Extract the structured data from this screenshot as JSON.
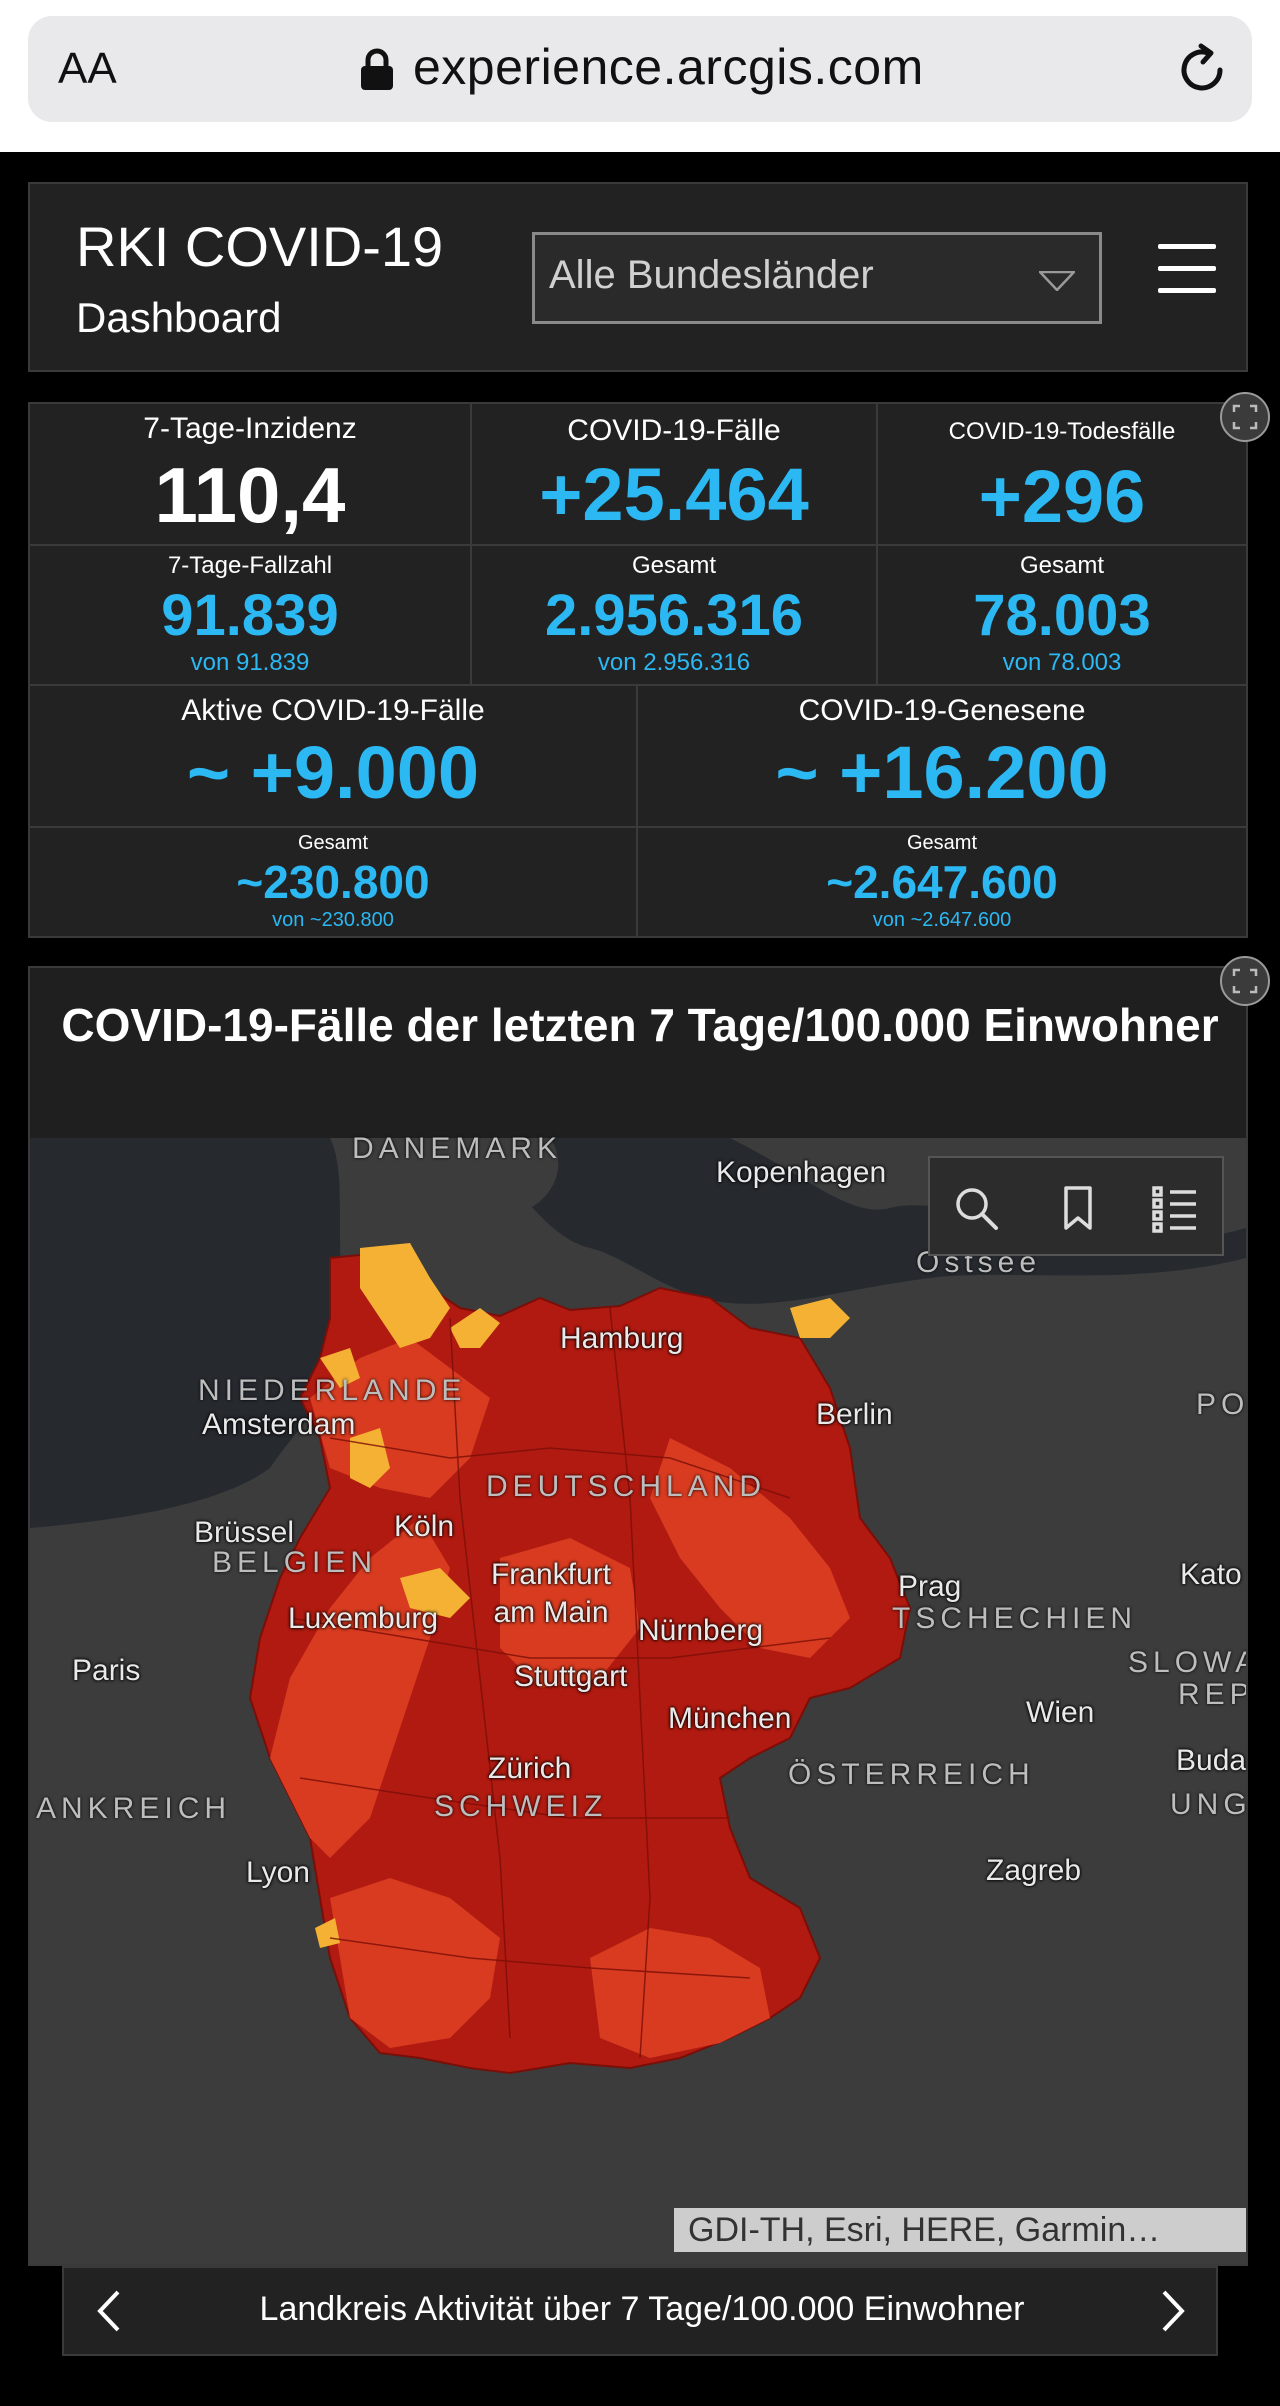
{
  "browser": {
    "aa_label": "AA",
    "url": "experience.arcgis.com"
  },
  "header": {
    "title": "RKI COVID-19",
    "subtitle": "Dashboard",
    "region_select": "Alle Bundesländer"
  },
  "stats": {
    "inzidenz": {
      "label": "7-Tage-Inzidenz",
      "value": "110,4"
    },
    "faelle": {
      "label": "COVID-19-Fälle",
      "value": "+25.464"
    },
    "todesfaelle": {
      "label": "COVID-19-Todesfälle",
      "value": "+296"
    },
    "fallzahl": {
      "label": "7-Tage-Fallzahl",
      "value": "91.839",
      "sub": "von 91.839"
    },
    "faelle_gesamt": {
      "label": "Gesamt",
      "value": "2.956.316",
      "sub": "von 2.956.316"
    },
    "tode_gesamt": {
      "label": "Gesamt",
      "value": "78.003",
      "sub": "von 78.003"
    },
    "aktive": {
      "label": "Aktive COVID-19-Fälle",
      "value": "~ +9.000",
      "total_label": "Gesamt",
      "total": "~230.800",
      "total_sub": "von ~230.800"
    },
    "genesene": {
      "label": "COVID-19-Genesene",
      "value": "~ +16.200",
      "total_label": "Gesamt",
      "total": "~2.647.600",
      "total_sub": "von ~2.647.600"
    }
  },
  "map": {
    "title": "COVID-19-Fälle der letzten 7 Tage/100.000 Einwohner",
    "attribution": "GDI-TH, Esri, HERE, Garmin…",
    "labels": {
      "daenemark": "DANEMARK",
      "kopenhagen": "Kopenhagen",
      "ostsee": "Ostsee",
      "hamburg": "Hamburg",
      "niederlande": "NIEDERLANDE",
      "amsterdam": "Amsterdam",
      "berlin": "Berlin",
      "po": "PO",
      "deutschland": "DEUTSCHLAND",
      "bruessel": "Brüssel",
      "belgien": "BELGIEN",
      "koeln": "Köln",
      "frankfurt": "Frankfurt am Main",
      "prag": "Prag",
      "kato": "Kato",
      "luxemburg": "Luxemburg",
      "tschechien": "TSCHECHIEN",
      "nuernberg": "Nürnberg",
      "paris": "Paris",
      "slowa": "SLOWA",
      "rep": "REP",
      "stuttgart": "Stuttgart",
      "wien": "Wien",
      "muenchen": "München",
      "zuerich": "Zürich",
      "oesterreich": "ÖSTERREICH",
      "buda": "Buda",
      "ankreich": "ANKREICH",
      "schweiz": "SCHWEIZ",
      "ung": "UNG",
      "lyon": "Lyon",
      "zagreb": "Zagreb"
    },
    "colors": {
      "high": "#b11a10",
      "mid": "#d83b20",
      "low": "#f5b133",
      "land": "#3c3c3c",
      "water": "#262a2f"
    }
  },
  "carousel": {
    "text": "Landkreis Aktivität über 7 Tage/100.000 Einwohner"
  }
}
